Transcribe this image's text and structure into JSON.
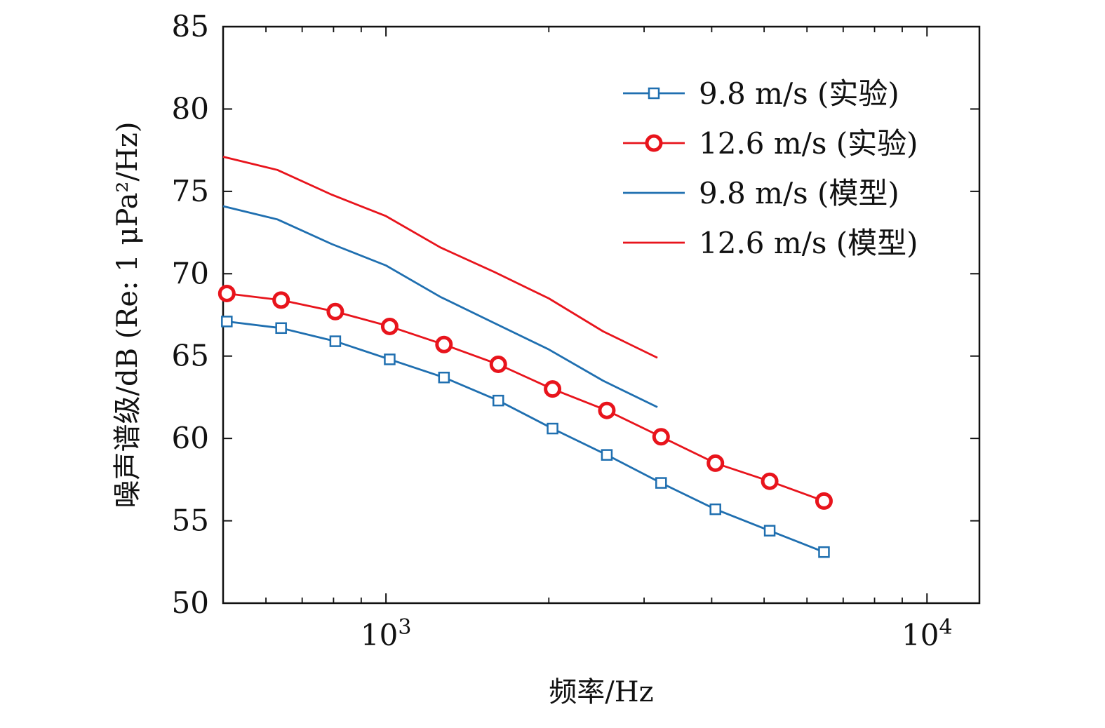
{
  "chart_data": {
    "type": "line",
    "title": "",
    "xlabel": "频率/Hz",
    "ylabel": "噪声谱级/dB (Re: 1 μPa²/Hz)",
    "xscale": "log",
    "xlim": [
      500,
      12500
    ],
    "ylim": [
      50,
      85
    ],
    "yticks": [
      50,
      55,
      60,
      65,
      70,
      75,
      80,
      85
    ],
    "ytick_labels": [
      "50",
      "55",
      "60",
      "65",
      "70",
      "75",
      "80",
      "85"
    ],
    "xtick_major": [
      1000,
      10000
    ],
    "xtick_labels": [
      {
        "base": "10",
        "exp": "3"
      },
      {
        "base": "10",
        "exp": "4"
      }
    ],
    "xtick_minor": [
      600,
      700,
      800,
      900,
      2000,
      3000,
      4000,
      5000,
      6000,
      7000,
      8000,
      9000
    ],
    "legend_position": "top-right",
    "series": [
      {
        "name": "9.8 m/s (实验)",
        "color": "#1f6fb0",
        "marker": "square",
        "x": [
          508,
          640,
          806,
          1016,
          1280,
          1613,
          2032,
          2560,
          3225,
          4064,
          5120,
          6451
        ],
        "y": [
          67.1,
          66.7,
          65.9,
          64.8,
          63.7,
          62.3,
          60.6,
          59.0,
          57.3,
          55.7,
          54.4,
          53.1
        ]
      },
      {
        "name": "12.6 m/s (实验)",
        "color": "#e8141c",
        "marker": "circle",
        "x": [
          508,
          640,
          806,
          1016,
          1280,
          1613,
          2032,
          2560,
          3225,
          4064,
          5120,
          6451
        ],
        "y": [
          68.8,
          68.4,
          67.7,
          66.8,
          65.7,
          64.5,
          63.0,
          61.7,
          60.1,
          58.5,
          57.4,
          56.2
        ]
      },
      {
        "name": "9.8 m/s (模型)",
        "color": "#1f6fb0",
        "marker": "none",
        "x": [
          500,
          630,
          794,
          1000,
          1260,
          1587,
          2000,
          2520,
          3175
        ],
        "y": [
          74.1,
          73.3,
          71.8,
          70.5,
          68.6,
          67.0,
          65.4,
          63.5,
          61.9
        ]
      },
      {
        "name": "12.6 m/s (模型)",
        "color": "#e8141c",
        "marker": "none",
        "x": [
          500,
          630,
          794,
          1000,
          1260,
          1587,
          2000,
          2520,
          3175
        ],
        "y": [
          77.1,
          76.3,
          74.8,
          73.5,
          71.6,
          70.1,
          68.5,
          66.5,
          64.9
        ]
      }
    ]
  }
}
